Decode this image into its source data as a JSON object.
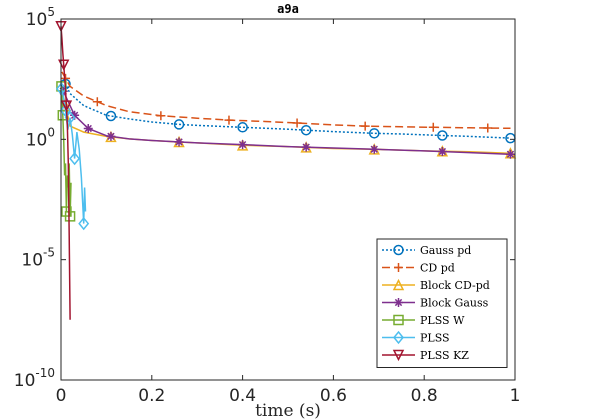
{
  "chart_data": {
    "type": "line",
    "title": "a9a",
    "xlabel": "time (s)",
    "ylabel": "",
    "xlim": [
      0,
      1
    ],
    "ylim_log10": [
      -10,
      5
    ],
    "yscale": "log",
    "grid": false,
    "legend_position": "bottom-right",
    "x_ticks": [
      {
        "value": 0,
        "label": "0"
      },
      {
        "value": 0.2,
        "label": "0.2"
      },
      {
        "value": 0.4,
        "label": "0.4"
      },
      {
        "value": 0.6,
        "label": "0.6"
      },
      {
        "value": 0.8,
        "label": "0.8"
      },
      {
        "value": 1,
        "label": "1"
      }
    ],
    "y_ticks": [
      {
        "exp": 5,
        "base": "10",
        "sup": "5"
      },
      {
        "exp": 0,
        "base": "10",
        "sup": "0"
      },
      {
        "exp": -5,
        "base": "10",
        "sup": "-5"
      },
      {
        "exp": -10,
        "base": "10",
        "sup": "-10"
      }
    ],
    "series": [
      {
        "name": "Gauss pd",
        "color": "#0072BD",
        "dash": "2,2",
        "marker": "circle",
        "points": [
          [
            0.005,
            2.5
          ],
          [
            0.02,
            1.9
          ],
          [
            0.05,
            1.4
          ],
          [
            0.1,
            1.0
          ],
          [
            0.15,
            0.85
          ],
          [
            0.2,
            0.72
          ],
          [
            0.26,
            0.62
          ],
          [
            0.3,
            0.58
          ],
          [
            0.4,
            0.5
          ],
          [
            0.5,
            0.42
          ],
          [
            0.54,
            0.38
          ],
          [
            0.6,
            0.32
          ],
          [
            0.69,
            0.25
          ],
          [
            0.75,
            0.22
          ],
          [
            0.84,
            0.16
          ],
          [
            0.9,
            0.12
          ],
          [
            0.99,
            0.05
          ]
        ],
        "marker_x": [
          0.01,
          0.11,
          0.26,
          0.4,
          0.54,
          0.69,
          0.84,
          0.99
        ]
      },
      {
        "name": "CD pd",
        "color": "#D95319",
        "dash": "8,4",
        "marker": "plus",
        "points": [
          [
            0.002,
            2.8
          ],
          [
            0.02,
            2.2
          ],
          [
            0.05,
            1.8
          ],
          [
            0.1,
            1.4
          ],
          [
            0.15,
            1.15
          ],
          [
            0.22,
            0.98
          ],
          [
            0.3,
            0.88
          ],
          [
            0.37,
            0.8
          ],
          [
            0.45,
            0.74
          ],
          [
            0.52,
            0.68
          ],
          [
            0.6,
            0.6
          ],
          [
            0.67,
            0.55
          ],
          [
            0.75,
            0.52
          ],
          [
            0.82,
            0.5
          ],
          [
            0.9,
            0.48
          ],
          [
            0.99,
            0.46
          ]
        ],
        "marker_x": [
          0.01,
          0.08,
          0.22,
          0.37,
          0.52,
          0.67,
          0.82,
          0.94
        ]
      },
      {
        "name": "Block CD-pd",
        "color": "#EDB120",
        "dash": "",
        "marker": "triangle-up",
        "points": [
          [
            0.005,
            1.8
          ],
          [
            0.02,
            0.55
          ],
          [
            0.05,
            0.3
          ],
          [
            0.1,
            0.12
          ],
          [
            0.15,
            0.02
          ],
          [
            0.2,
            -0.05
          ],
          [
            0.25,
            -0.1
          ],
          [
            0.3,
            -0.15
          ],
          [
            0.35,
            -0.2
          ],
          [
            0.4,
            -0.25
          ],
          [
            0.5,
            -0.3
          ],
          [
            0.6,
            -0.38
          ],
          [
            0.7,
            -0.42
          ],
          [
            0.8,
            -0.48
          ],
          [
            0.9,
            -0.52
          ],
          [
            0.99,
            -0.58
          ]
        ],
        "marker_x": [
          0.01,
          0.11,
          0.26,
          0.4,
          0.54,
          0.69,
          0.84,
          0.99
        ]
      },
      {
        "name": "Block Gauss",
        "color": "#7E2F8E",
        "dash": "",
        "marker": "star",
        "points": [
          [
            0.005,
            2.0
          ],
          [
            0.03,
            1.0
          ],
          [
            0.06,
            0.45
          ],
          [
            0.1,
            0.15
          ],
          [
            0.15,
            0.02
          ],
          [
            0.2,
            -0.05
          ],
          [
            0.3,
            -0.15
          ],
          [
            0.4,
            -0.22
          ],
          [
            0.5,
            -0.3
          ],
          [
            0.6,
            -0.36
          ],
          [
            0.7,
            -0.42
          ],
          [
            0.8,
            -0.48
          ],
          [
            0.9,
            -0.55
          ],
          [
            0.99,
            -0.62
          ]
        ],
        "marker_x": [
          0.005,
          0.03,
          0.06,
          0.11,
          0.26,
          0.4,
          0.54,
          0.69,
          0.84,
          0.99
        ]
      },
      {
        "name": "PLSS W",
        "color": "#77AC30",
        "dash": "",
        "marker": "square",
        "points": [
          [
            0.001,
            2.2
          ],
          [
            0.004,
            1.0
          ],
          [
            0.006,
            0.0
          ],
          [
            0.008,
            -1.5
          ],
          [
            0.01,
            -1.0
          ],
          [
            0.012,
            -3.0
          ],
          [
            0.014,
            -1.5
          ],
          [
            0.016,
            -2.0
          ],
          [
            0.018,
            -1.0
          ],
          [
            0.02,
            -3.2
          ],
          [
            0.022,
            -1.8
          ]
        ],
        "marker_x": [
          0.001,
          0.004,
          0.012,
          0.02
        ]
      },
      {
        "name": "PLSS",
        "color": "#4DBEEE",
        "dash": "",
        "marker": "diamond",
        "points": [
          [
            0.001,
            2.1
          ],
          [
            0.005,
            1.8
          ],
          [
            0.01,
            1.2
          ],
          [
            0.015,
            0.4
          ],
          [
            0.02,
            0.9
          ],
          [
            0.025,
            0.2
          ],
          [
            0.03,
            -0.8
          ],
          [
            0.035,
            0.3
          ],
          [
            0.04,
            -0.4
          ],
          [
            0.045,
            -1.6
          ],
          [
            0.05,
            -3.5
          ],
          [
            0.052,
            -2.0
          ],
          [
            0.054,
            -3.0
          ]
        ],
        "marker_x": [
          0.001,
          0.01,
          0.02,
          0.03,
          0.05
        ]
      },
      {
        "name": "PLSS KZ",
        "color": "#A2142F",
        "dash": "",
        "marker": "triangle-down",
        "points": [
          [
            0.0,
            4.7
          ],
          [
            0.002,
            4.2
          ],
          [
            0.004,
            3.6
          ],
          [
            0.006,
            3.1
          ],
          [
            0.008,
            2.6
          ],
          [
            0.01,
            2.1
          ],
          [
            0.012,
            1.4
          ],
          [
            0.014,
            0.5
          ],
          [
            0.016,
            -1.0
          ],
          [
            0.018,
            -4.0
          ],
          [
            0.02,
            -7.5
          ]
        ],
        "marker_x": [
          0.0,
          0.006,
          0.012
        ]
      }
    ]
  }
}
